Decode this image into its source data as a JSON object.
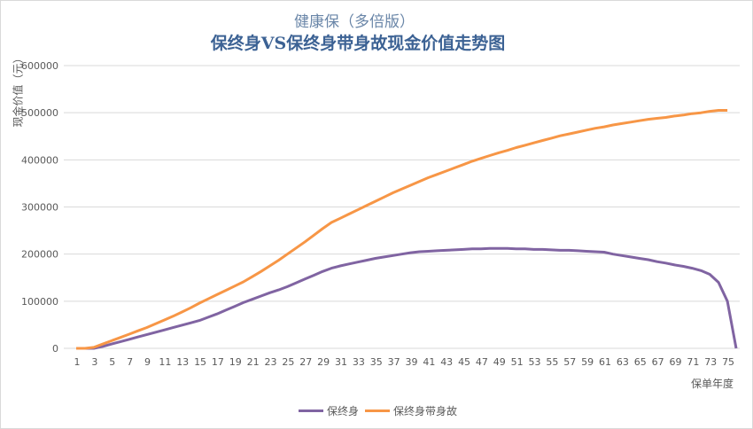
{
  "chart_data": {
    "type": "line",
    "subtitle": "健康保（多倍版）",
    "title": "保终身VS保终身带身故现金价值走势图",
    "xlabel": "保单年度",
    "ylabel": "现金价值（元）",
    "ylim": [
      0,
      600000
    ],
    "yticks": [
      "0",
      "100000",
      "200000",
      "300000",
      "400000",
      "500000",
      "600000"
    ],
    "grid": true,
    "legend": "bottom",
    "categories": [
      1,
      2,
      3,
      4,
      5,
      6,
      7,
      8,
      9,
      10,
      11,
      12,
      13,
      14,
      15,
      16,
      17,
      18,
      19,
      20,
      21,
      22,
      23,
      24,
      25,
      26,
      27,
      28,
      29,
      30,
      31,
      32,
      33,
      34,
      35,
      36,
      37,
      38,
      39,
      40,
      41,
      42,
      43,
      44,
      45,
      46,
      47,
      48,
      49,
      50,
      51,
      52,
      53,
      54,
      55,
      56,
      57,
      58,
      59,
      60,
      61,
      62,
      63,
      64,
      65,
      66,
      67,
      68,
      69,
      70,
      71,
      72,
      73,
      74,
      75,
      76
    ],
    "series": [
      {
        "name": "保终身",
        "color": "#8064A2",
        "values": [
          0,
          0,
          0,
          4000,
          9000,
          14000,
          19000,
          24000,
          29000,
          34000,
          39000,
          44000,
          49000,
          54000,
          59000,
          66000,
          73000,
          81000,
          89000,
          97000,
          104000,
          111000,
          118000,
          124000,
          131000,
          139000,
          147000,
          155000,
          163000,
          170000,
          175000,
          179000,
          183000,
          187000,
          191000,
          194000,
          197000,
          200000,
          203000,
          205000,
          206000,
          207000,
          208000,
          209000,
          210000,
          211000,
          211000,
          212000,
          212000,
          212000,
          211000,
          211000,
          210000,
          210000,
          209000,
          208000,
          208000,
          207000,
          206000,
          205000,
          204000,
          200000,
          197000,
          194000,
          191000,
          188000,
          184000,
          181000,
          177000,
          174000,
          170000,
          165000,
          157000,
          140000,
          100000,
          0
        ]
      },
      {
        "name": "保终身带身故",
        "color": "#F79646",
        "values": [
          0,
          0,
          2000,
          9000,
          16000,
          23000,
          30000,
          37000,
          44000,
          52000,
          60000,
          68000,
          77000,
          86000,
          96000,
          105000,
          114000,
          123000,
          132000,
          141000,
          152000,
          163000,
          175000,
          187000,
          200000,
          213000,
          226000,
          240000,
          254000,
          267000,
          276000,
          285000,
          294000,
          303000,
          312000,
          321000,
          330000,
          338000,
          346000,
          354000,
          362000,
          369000,
          376000,
          383000,
          390000,
          397000,
          403000,
          409000,
          415000,
          420000,
          426000,
          431000,
          436000,
          441000,
          446000,
          451000,
          455000,
          459000,
          463000,
          467000,
          470000,
          474000,
          477000,
          480000,
          483000,
          486000,
          488000,
          490000,
          493000,
          495000,
          498000,
          500000,
          503000,
          505000,
          505000,
          null
        ]
      }
    ]
  }
}
